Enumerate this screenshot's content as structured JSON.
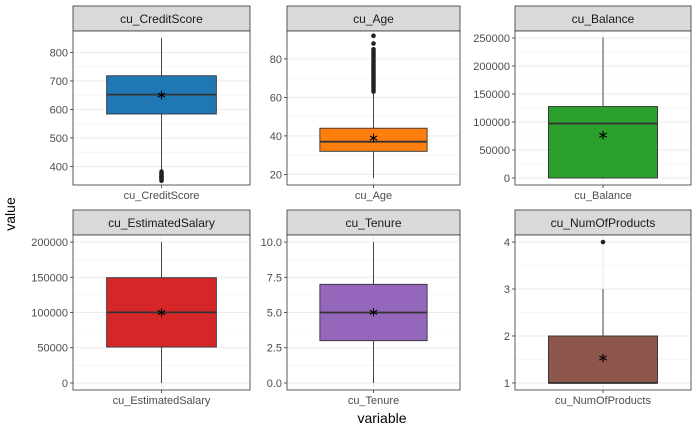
{
  "chart_data": {
    "type": "box",
    "xlabel": "variable",
    "ylabel": "value",
    "grid": true,
    "legend": "none",
    "facets": [
      {
        "strip": "cu_CreditScore",
        "category": "cu_CreditScore",
        "color": "#1f77b4",
        "ylim": [
          335,
          875
        ],
        "yticks": [
          400,
          500,
          600,
          700,
          800
        ],
        "ytick_labels": [
          "400",
          "500",
          "600",
          "700",
          "800"
        ],
        "whisker_low": 383,
        "q1": 584,
        "median": 652,
        "q3": 718,
        "whisker_high": 850,
        "mean": 650.5,
        "outliers": [
          350,
          355,
          359,
          363,
          365,
          367,
          373,
          376,
          382
        ]
      },
      {
        "strip": "cu_Age",
        "category": "cu_Age",
        "color": "#ff7f0e",
        "ylim": [
          14.5,
          94.5
        ],
        "yticks": [
          20,
          40,
          60,
          80
        ],
        "ytick_labels": [
          "20",
          "40",
          "60",
          "80"
        ],
        "whisker_low": 18,
        "q1": 32,
        "median": 37,
        "q3": 44,
        "whisker_high": 62,
        "mean": 38.9,
        "outliers": [
          63,
          64,
          65,
          66,
          67,
          68,
          69,
          70,
          71,
          72,
          73,
          74,
          75,
          76,
          77,
          78,
          79,
          80,
          81,
          82,
          83,
          84,
          85,
          88,
          92
        ]
      },
      {
        "strip": "cu_Balance",
        "category": "cu_Balance",
        "color": "#2ca02c",
        "ylim": [
          -12500,
          262500
        ],
        "yticks": [
          0,
          50000,
          100000,
          150000,
          200000,
          250000
        ],
        "ytick_labels": [
          "0",
          "50000",
          "100000",
          "150000",
          "200000",
          "250000"
        ],
        "whisker_low": 0,
        "q1": 0,
        "median": 97199,
        "q3": 127644,
        "whisker_high": 250898,
        "mean": 76486,
        "outliers": []
      },
      {
        "strip": "cu_EstimatedSalary",
        "category": "cu_EstimatedSalary",
        "color": "#d62728",
        "ylim": [
          -10000,
          210000
        ],
        "yticks": [
          0,
          50000,
          100000,
          150000,
          200000
        ],
        "ytick_labels": [
          "0",
          "50000",
          "100000",
          "150000",
          "200000"
        ],
        "whisker_low": 12,
        "q1": 51002,
        "median": 100194,
        "q3": 149388,
        "whisker_high": 199992,
        "mean": 100090,
        "outliers": []
      },
      {
        "strip": "cu_Tenure",
        "category": "cu_Tenure",
        "color": "#9467bd",
        "ylim": [
          -0.5,
          10.5
        ],
        "yticks": [
          0,
          2.5,
          5,
          7.5,
          10
        ],
        "ytick_labels": [
          "0.0",
          "2.5",
          "5.0",
          "7.5",
          "10.0"
        ],
        "whisker_low": 0,
        "q1": 3,
        "median": 5,
        "q3": 7,
        "whisker_high": 10,
        "mean": 5.01,
        "outliers": []
      },
      {
        "strip": "cu_NumOfProducts",
        "category": "cu_NumOfProducts",
        "color": "#8c564b",
        "ylim": [
          0.85,
          4.15
        ],
        "yticks": [
          1,
          2,
          3,
          4
        ],
        "ytick_labels": [
          "1",
          "2",
          "3",
          "4"
        ],
        "whisker_low": 1,
        "q1": 1,
        "median": 1,
        "q3": 2,
        "whisker_high": 3,
        "mean": 1.53,
        "outliers": [
          4
        ]
      }
    ]
  }
}
